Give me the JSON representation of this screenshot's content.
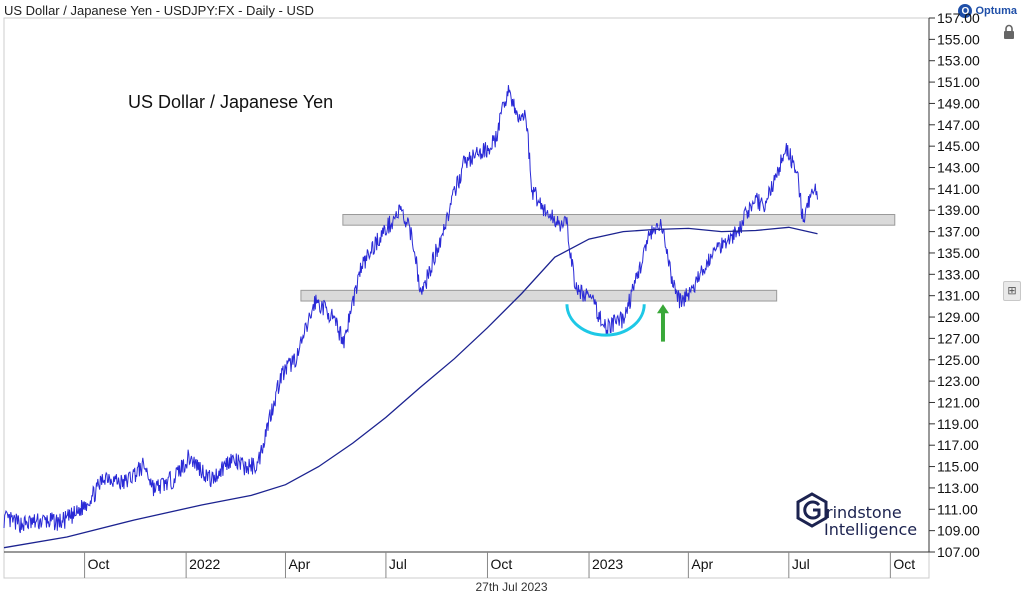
{
  "header": {
    "title": "US Dollar / Japanese Yen - USDJPY:FX - Daily - USD",
    "brand": "Optuma",
    "brand_icon": "optuma-logo-icon"
  },
  "watermark": {
    "line1": "rindstone",
    "line2": "Intelligence",
    "icon": "grindstone-hex-g-logo"
  },
  "footer": {
    "date": "27th Jul 2023"
  },
  "colors": {
    "price": "#2a2ad6",
    "moving_average": "#1c2390",
    "zones": "#d3d3d3",
    "arc": "#1ec8e6",
    "arrow": "#39a839"
  },
  "chart_data": {
    "type": "line",
    "title": "US Dollar / Japanese Yen",
    "xlabel": "",
    "ylabel": "",
    "ylim": [
      107.0,
      157.0
    ],
    "y_ticks": [
      "157.00",
      "155.00",
      "153.00",
      "151.00",
      "149.00",
      "147.00",
      "145.00",
      "143.00",
      "141.00",
      "139.00",
      "137.00",
      "135.00",
      "133.00",
      "131.00",
      "129.00",
      "127.00",
      "125.00",
      "123.00",
      "121.00",
      "119.00",
      "117.00",
      "115.00",
      "113.00",
      "111.00",
      "109.00",
      "107.00"
    ],
    "x_ticks": [
      "Oct",
      "2022",
      "Apr",
      "Jul",
      "Oct",
      "2023",
      "Apr",
      "Jul",
      "Oct"
    ],
    "x_tick_dates": [
      "2021-10-01",
      "2022-01-01",
      "2022-04-01",
      "2022-07-01",
      "2022-10-01",
      "2023-01-01",
      "2023-04-01",
      "2023-07-01",
      "2023-10-01"
    ],
    "x_range": [
      "2021-07-20",
      "2023-11-05"
    ],
    "grid": false,
    "series": [
      {
        "style": "volatile",
        "points": [
          [
            "2021-07-20",
            110.1
          ],
          [
            "2021-08-05",
            109.6
          ],
          [
            "2021-08-25",
            109.9
          ],
          [
            "2021-09-10",
            109.8
          ],
          [
            "2021-09-24",
            110.6
          ],
          [
            "2021-10-10",
            112.5
          ],
          [
            "2021-10-20",
            114.2
          ],
          [
            "2021-11-05",
            113.4
          ],
          [
            "2021-11-24",
            115.1
          ],
          [
            "2021-12-03",
            112.9
          ],
          [
            "2021-12-20",
            113.8
          ],
          [
            "2022-01-04",
            115.9
          ],
          [
            "2022-01-24",
            113.7
          ],
          [
            "2022-02-10",
            115.7
          ],
          [
            "2022-02-24",
            114.9
          ],
          [
            "2022-03-07",
            115.2
          ],
          [
            "2022-03-15",
            118.6
          ],
          [
            "2022-03-28",
            123.5
          ],
          [
            "2022-04-12",
            125.4
          ],
          [
            "2022-04-28",
            130.5
          ],
          [
            "2022-05-10",
            129.5
          ],
          [
            "2022-05-24",
            126.8
          ],
          [
            "2022-06-08",
            133.5
          ],
          [
            "2022-06-22",
            136.0
          ],
          [
            "2022-07-14",
            139.0
          ],
          [
            "2022-07-25",
            136.5
          ],
          [
            "2022-08-02",
            131.0
          ],
          [
            "2022-08-20",
            136.5
          ],
          [
            "2022-09-10",
            143.5
          ],
          [
            "2022-09-28",
            144.5
          ],
          [
            "2022-10-08",
            145.5
          ],
          [
            "2022-10-20",
            150.5
          ],
          [
            "2022-10-28",
            147.5
          ],
          [
            "2022-11-05",
            148.0
          ],
          [
            "2022-11-10",
            141.0
          ],
          [
            "2022-11-25",
            138.5
          ],
          [
            "2022-12-12",
            137.5
          ],
          [
            "2022-12-20",
            131.5
          ],
          [
            "2023-01-01",
            131.0
          ],
          [
            "2023-01-16",
            128.0
          ],
          [
            "2023-02-01",
            128.8
          ],
          [
            "2023-02-10",
            131.5
          ],
          [
            "2023-02-24",
            136.5
          ],
          [
            "2023-03-08",
            137.5
          ],
          [
            "2023-03-16",
            133.0
          ],
          [
            "2023-03-24",
            130.5
          ],
          [
            "2023-04-05",
            131.5
          ],
          [
            "2023-04-20",
            134.5
          ],
          [
            "2023-05-02",
            136.0
          ],
          [
            "2023-05-16",
            137.0
          ],
          [
            "2023-05-30",
            140.0
          ],
          [
            "2023-06-10",
            139.5
          ],
          [
            "2023-06-22",
            143.0
          ],
          [
            "2023-06-30",
            144.8
          ],
          [
            "2023-07-10",
            141.5
          ],
          [
            "2023-07-14",
            137.8
          ],
          [
            "2023-07-20",
            140.0
          ],
          [
            "2023-07-25",
            141.2
          ],
          [
            "2023-07-27",
            140.0
          ]
        ]
      },
      {
        "style": "smooth",
        "points": [
          [
            "2021-07-20",
            107.4
          ],
          [
            "2021-09-15",
            108.4
          ],
          [
            "2021-11-15",
            110.0
          ],
          [
            "2022-01-15",
            111.4
          ],
          [
            "2022-03-01",
            112.3
          ],
          [
            "2022-04-01",
            113.3
          ],
          [
            "2022-05-01",
            115.0
          ],
          [
            "2022-06-01",
            117.2
          ],
          [
            "2022-07-01",
            119.6
          ],
          [
            "2022-08-01",
            122.4
          ],
          [
            "2022-09-01",
            125.1
          ],
          [
            "2022-10-01",
            128.0
          ],
          [
            "2022-11-01",
            131.2
          ],
          [
            "2022-12-01",
            134.6
          ],
          [
            "2023-01-01",
            136.3
          ],
          [
            "2023-02-01",
            137.0
          ],
          [
            "2023-03-01",
            137.2
          ],
          [
            "2023-04-01",
            137.3
          ],
          [
            "2023-05-01",
            137.0
          ],
          [
            "2023-06-01",
            137.1
          ],
          [
            "2023-07-01",
            137.4
          ],
          [
            "2023-07-27",
            136.8
          ]
        ]
      }
    ],
    "zones": [
      {
        "start": "2022-05-23",
        "end": "2023-10-05",
        "low": 137.6,
        "high": 138.6
      },
      {
        "start": "2022-04-15",
        "end": "2023-06-20",
        "low": 130.5,
        "high": 131.5
      }
    ],
    "annotations": [
      {
        "type": "arc",
        "start": "2022-12-12",
        "end": "2023-02-20",
        "low": 127.3,
        "high": 130.2
      },
      {
        "type": "arrow",
        "date": "2023-03-09",
        "from": 126.7,
        "to": 130.2
      }
    ]
  }
}
